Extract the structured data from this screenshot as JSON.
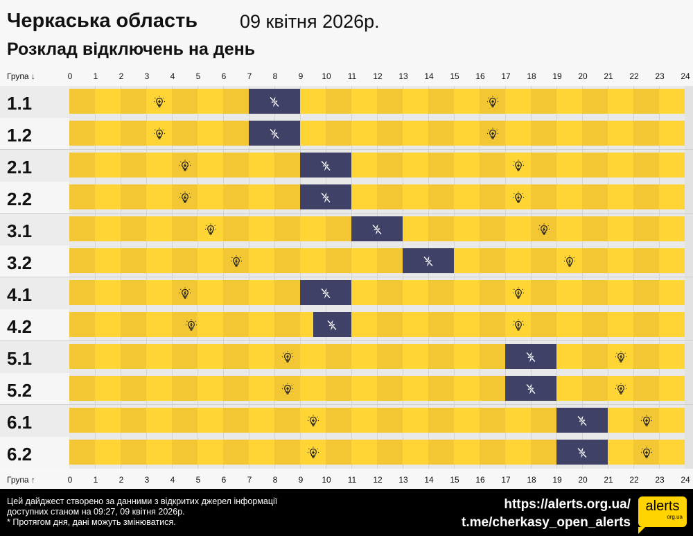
{
  "header": {
    "region": "Черкаська область",
    "date": "09 квітня 2026р.",
    "subtitle": "Розклад відключень на день"
  },
  "axis": {
    "top_label": "Група ↓",
    "bottom_label": "Група ↑",
    "hours": [
      "0",
      "1",
      "2",
      "3",
      "4",
      "5",
      "6",
      "7",
      "8",
      "9",
      "10",
      "11",
      "12",
      "13",
      "14",
      "15",
      "16",
      "17",
      "18",
      "19",
      "20",
      "21",
      "22",
      "23",
      "24"
    ]
  },
  "colors": {
    "on_light": "#FFD435",
    "on_dark": "#F3C634",
    "off": "#3F4166",
    "label_a": "#ececec",
    "label_b": "#f6f6f6"
  },
  "groups": [
    {
      "name": "1.1",
      "off": [
        [
          7,
          9
        ]
      ]
    },
    {
      "name": "1.2",
      "off": [
        [
          7,
          9
        ]
      ]
    },
    {
      "name": "2.1",
      "off": [
        [
          9,
          11
        ]
      ]
    },
    {
      "name": "2.2",
      "off": [
        [
          9,
          11
        ]
      ]
    },
    {
      "name": "3.1",
      "off": [
        [
          11,
          13
        ]
      ]
    },
    {
      "name": "3.2",
      "off": [
        [
          13,
          15
        ]
      ]
    },
    {
      "name": "4.1",
      "off": [
        [
          9,
          11
        ]
      ]
    },
    {
      "name": "4.2",
      "off": [
        [
          9.5,
          11
        ]
      ]
    },
    {
      "name": "5.1",
      "off": [
        [
          17,
          19
        ]
      ]
    },
    {
      "name": "5.2",
      "off": [
        [
          17,
          19
        ]
      ]
    },
    {
      "name": "6.1",
      "off": [
        [
          19,
          21
        ]
      ]
    },
    {
      "name": "6.2",
      "off": [
        [
          19,
          21
        ]
      ]
    }
  ],
  "icons": {
    "on": "lightbulb-icon",
    "off": "power-off-icon"
  },
  "footer": {
    "note_line1": "Цей дайджест створено за данними з відкритих джерел інформації",
    "note_line2": "доступних станом на 09:27, 09 квітня 2026р.",
    "note_line3": "* Протягом дня, дані можуть змінюватися.",
    "link_site": "https://alerts.org.ua/",
    "link_telegram": "t.me/cherkasy_open_alerts",
    "logo_text": "alerts",
    "logo_sub": "org.ua"
  }
}
